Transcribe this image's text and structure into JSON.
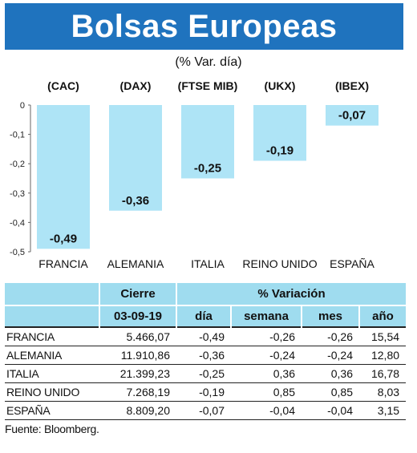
{
  "header": {
    "title": "Bolsas Europeas",
    "subtitle": "(% Var. día)"
  },
  "colors": {
    "banner": "#1f73be",
    "bar": "#aee4f6",
    "table_header": "#9fdcef"
  },
  "chart_data": {
    "type": "bar",
    "categories": [
      "FRANCIA",
      "ALEMANIA",
      "ITALIA",
      "REINO UNIDO",
      "ESPAÑA"
    ],
    "index_labels": [
      "(CAC)",
      "(DAX)",
      "(FTSE MIB)",
      "(UKX)",
      "(IBEX)"
    ],
    "values": [
      -0.49,
      -0.36,
      -0.25,
      -0.19,
      -0.07
    ],
    "value_labels": [
      "-0,49",
      "-0,36",
      "-0,25",
      "-0,19",
      "-0,07"
    ],
    "yticks": [
      0,
      -0.1,
      -0.2,
      -0.3,
      -0.4,
      -0.5
    ],
    "ytick_labels": [
      "0",
      "-0,1",
      "-0,2",
      "-0,3",
      "-0,4",
      "-0,5"
    ],
    "ylim": [
      -0.5,
      0
    ],
    "grid": false
  },
  "table": {
    "header_cierre": "Cierre",
    "header_variacion": "% Variación",
    "header_date": "03-09-19",
    "header_dia": "día",
    "header_semana": "semana",
    "header_mes": "mes",
    "header_anio": "año",
    "rows": [
      {
        "country": "FRANCIA",
        "cierre": "5.466,07",
        "dia": "-0,49",
        "semana": "-0,26",
        "mes": "-0,26",
        "anio": "15,54"
      },
      {
        "country": "ALEMANIA",
        "cierre": "11.910,86",
        "dia": "-0,36",
        "semana": "-0,24",
        "mes": "-0,24",
        "anio": "12,80"
      },
      {
        "country": "ITALIA",
        "cierre": "21.399,23",
        "dia": "-0,25",
        "semana": "0,36",
        "mes": "0,36",
        "anio": "16,78"
      },
      {
        "country": "REINO UNIDO",
        "cierre": "7.268,19",
        "dia": "-0,19",
        "semana": "0,85",
        "mes": "0,85",
        "anio": "8,03"
      },
      {
        "country": "ESPAÑA",
        "cierre": "8.809,20",
        "dia": "-0,07",
        "semana": "-0,04",
        "mes": "-0,04",
        "anio": "3,15"
      }
    ]
  },
  "source": "Fuente: Bloomberg."
}
